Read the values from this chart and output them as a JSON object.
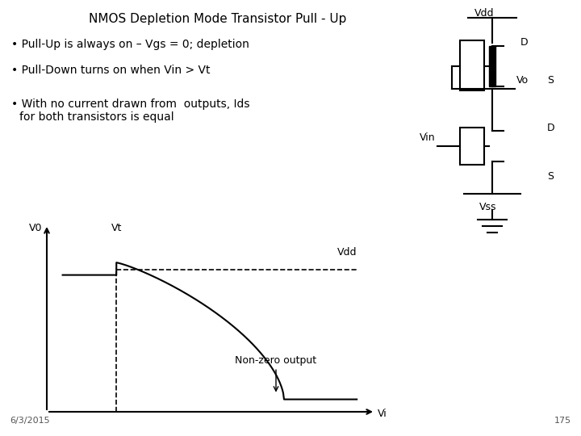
{
  "title": "NMOS Depletion Mode Transistor Pull - Up",
  "bullet1": "Pull-Up is always on – Vgs = 0; depletion",
  "bullet2": "Pull-Down turns on when Vin > Vt",
  "bullet3_line1": "With no current drawn from  outputs, Ids",
  "bullet3_line2": "for both transistors is equal",
  "date": "6/3/2015",
  "page": "175",
  "bg_color": "#ffffff",
  "text_color": "#000000",
  "title_fontsize": 11,
  "bullet_fontsize": 10,
  "small_fontsize": 8
}
